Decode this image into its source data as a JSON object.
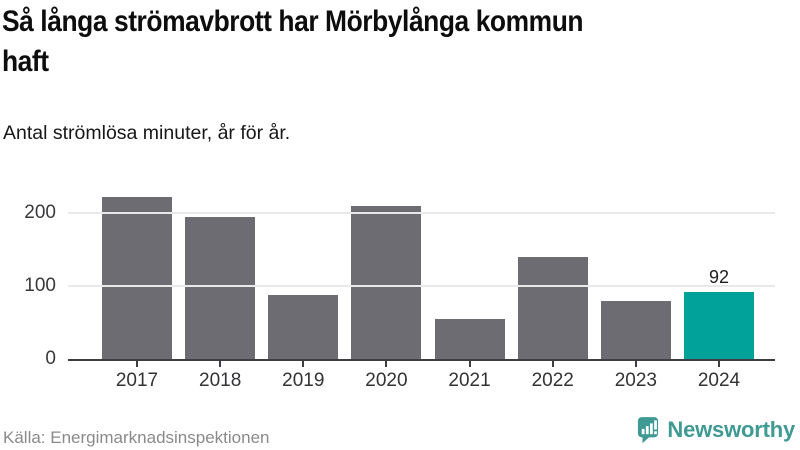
{
  "header": {
    "title": "Så långa strömavbrott har Mörbylånga kommun\nhaft",
    "subtitle": "Antal strömlösa minuter, år för år."
  },
  "chart_data": {
    "type": "bar",
    "title": "Så långa strömavbrott har Mörbylånga kommun haft",
    "subtitle": "Antal strömlösa minuter, år för år.",
    "categories": [
      "2017",
      "2018",
      "2019",
      "2020",
      "2021",
      "2022",
      "2023",
      "2024"
    ],
    "values": [
      222,
      195,
      87,
      209,
      55,
      140,
      80,
      92
    ],
    "highlight_index": 7,
    "highlight_value_label": "92",
    "xlabel": "",
    "ylabel": "Antal strömlösa minuter",
    "yticks": [
      0,
      100,
      200
    ],
    "ylim": [
      0,
      230
    ],
    "grid": "horizontal",
    "legend": "none",
    "bar_color": "#6D6C72",
    "highlight_color": "#00A29A",
    "axis_line_color": "#3E3E42",
    "gridline_color": "#E9E9EA"
  },
  "footer": {
    "source": "Källa: Energimarknadsinspektionen",
    "brand": "Newsworthy",
    "brand_color": "#3E9A93"
  }
}
